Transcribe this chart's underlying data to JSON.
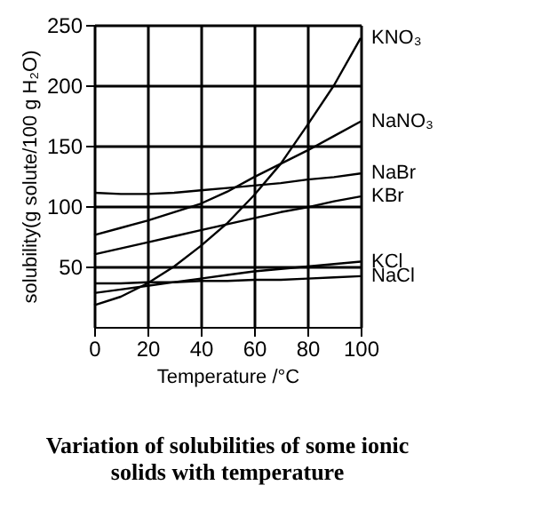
{
  "chart_data": {
    "type": "line",
    "xlabel": "Temperature /°C",
    "ylabel": "solubility(g solute/100 g H₂O)",
    "x": [
      0,
      10,
      20,
      30,
      40,
      50,
      60,
      70,
      80,
      90,
      100
    ],
    "series": [
      {
        "name": "KNO₃",
        "color": "#000000",
        "values": [
          18,
          25,
          36,
          50,
          67,
          86,
          109,
          135,
          167,
          200,
          239
        ]
      },
      {
        "name": "NaNO₃",
        "color": "#000000",
        "values": [
          76,
          82,
          88,
          95,
          102,
          112,
          124,
          135,
          146,
          158,
          170
        ]
      },
      {
        "name": "NaBr",
        "color": "#000000",
        "values": [
          111,
          110,
          110,
          111,
          113,
          115,
          117,
          119,
          122,
          124,
          127
        ]
      },
      {
        "name": "KBr",
        "color": "#000000",
        "values": [
          60,
          65,
          70,
          75,
          80,
          85,
          90,
          95,
          99,
          104,
          108
        ]
      },
      {
        "name": "KCl",
        "color": "#000000",
        "values": [
          28,
          31,
          34,
          37,
          40,
          43,
          46,
          48,
          50,
          52,
          54
        ]
      },
      {
        "name": "NaCl",
        "color": "#000000",
        "values": [
          36,
          36,
          37,
          37,
          38,
          38,
          39,
          39,
          40,
          41,
          42
        ]
      }
    ],
    "xlim": [
      0,
      100
    ],
    "xticks": [
      0,
      20,
      40,
      60,
      80,
      100
    ],
    "ylim": [
      0,
      250
    ],
    "yticks": [
      50,
      100,
      150,
      200,
      250
    ],
    "grid": true,
    "legend": false,
    "marker": "none",
    "line_style": "solid",
    "annotations": [
      "Variation of solubilities of some ionic solids with temperature"
    ]
  }
}
